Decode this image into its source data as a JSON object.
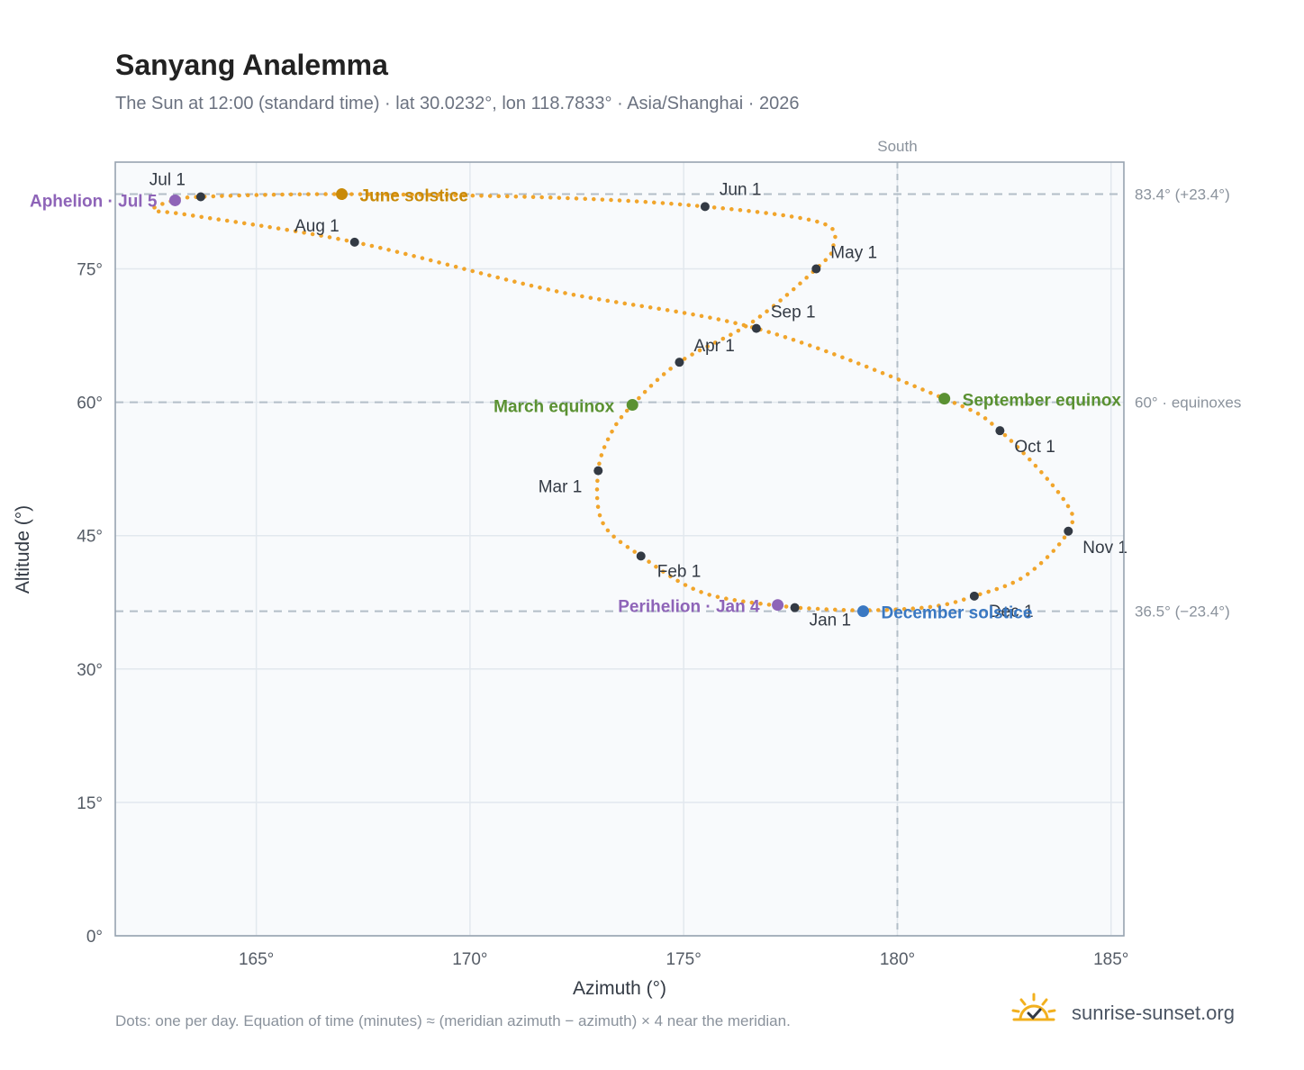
{
  "title": "Sanyang Analemma",
  "subtitle": "The Sun at 12:00 (standard time) · lat 30.0232°, lon 118.7833° · Asia/Shanghai · 2026",
  "footnote": "Dots: one per day. Equation of time (minutes) ≈ (meridian azimuth − azimuth) × 4 near the meridian.",
  "brand": {
    "text": "sunrise-sunset.org",
    "icon": "sun-check-icon"
  },
  "colors": {
    "path": "#f0a020",
    "month": "#333a44",
    "purple": "#8e64b8",
    "green": "#5a9132",
    "gold": "#c98a08",
    "blue": "#3a78c2",
    "grid": "#e2e8ee",
    "ref": "#b3bec8",
    "plot_bg": "#f8fafc",
    "frame": "#97a3b0"
  },
  "chart_data": {
    "type": "scatter",
    "xlabel": "Azimuth (°)",
    "ylabel": "Altitude (°)",
    "xlim": [
      161.7,
      185.3
    ],
    "ylim": [
      0,
      87
    ],
    "xticks": [
      165,
      170,
      175,
      180,
      185
    ],
    "xtick_labels": [
      "165°",
      "170°",
      "175°",
      "180°",
      "185°"
    ],
    "yticks": [
      0,
      15,
      30,
      45,
      60,
      75
    ],
    "ytick_labels": [
      "0°",
      "15°",
      "30°",
      "45°",
      "60°",
      "75°"
    ],
    "grid": true,
    "meridian": {
      "label": "South",
      "x": 180
    },
    "reference_lines": [
      {
        "y": 83.4,
        "label": "83.4° (+23.4°)"
      },
      {
        "y": 60.0,
        "label": "60° · equinoxes"
      },
      {
        "y": 36.5,
        "label": "36.5° (−23.4°)"
      }
    ],
    "path_key_points": [
      {
        "x": 177.6,
        "y": 36.9
      },
      {
        "x": 175.5,
        "y": 38.5
      },
      {
        "x": 174.0,
        "y": 42.7
      },
      {
        "x": 173.1,
        "y": 46.5
      },
      {
        "x": 173.0,
        "y": 52.3
      },
      {
        "x": 173.3,
        "y": 56.5
      },
      {
        "x": 173.8,
        "y": 59.7
      },
      {
        "x": 174.9,
        "y": 64.5
      },
      {
        "x": 176.6,
        "y": 69.0
      },
      {
        "x": 178.1,
        "y": 75.0
      },
      {
        "x": 178.5,
        "y": 77.5
      },
      {
        "x": 178.2,
        "y": 80.2
      },
      {
        "x": 175.5,
        "y": 82.0
      },
      {
        "x": 172.0,
        "y": 83.0
      },
      {
        "x": 167.0,
        "y": 83.4
      },
      {
        "x": 163.7,
        "y": 83.1
      },
      {
        "x": 163.0,
        "y": 82.6
      },
      {
        "x": 162.6,
        "y": 81.6
      },
      {
        "x": 163.5,
        "y": 81.0
      },
      {
        "x": 167.3,
        "y": 78.0
      },
      {
        "x": 172.0,
        "y": 72.5
      },
      {
        "x": 176.7,
        "y": 68.3
      },
      {
        "x": 181.1,
        "y": 60.4
      },
      {
        "x": 182.4,
        "y": 56.8
      },
      {
        "x": 183.9,
        "y": 49.0
      },
      {
        "x": 184.0,
        "y": 45.5
      },
      {
        "x": 183.0,
        "y": 40.5
      },
      {
        "x": 181.8,
        "y": 38.2
      },
      {
        "x": 180.8,
        "y": 37.0
      },
      {
        "x": 179.2,
        "y": 36.6
      },
      {
        "x": 177.6,
        "y": 36.9
      }
    ],
    "months": [
      {
        "label": "Jan 1",
        "x": 177.6,
        "y": 36.9,
        "dx": 16,
        "dy": 20,
        "anchor": "start"
      },
      {
        "label": "Feb 1",
        "x": 174.0,
        "y": 42.7,
        "dx": 18,
        "dy": 23,
        "anchor": "start"
      },
      {
        "label": "Mar 1",
        "x": 173.0,
        "y": 52.3,
        "dx": -18,
        "dy": 24,
        "anchor": "end"
      },
      {
        "label": "Apr 1",
        "x": 174.9,
        "y": 64.5,
        "dx": 16,
        "dy": -12,
        "anchor": "start"
      },
      {
        "label": "May 1",
        "x": 178.1,
        "y": 75.0,
        "dx": 16,
        "dy": -12,
        "anchor": "start"
      },
      {
        "label": "Jun 1",
        "x": 175.5,
        "y": 82.0,
        "dx": 16,
        "dy": -13,
        "anchor": "start"
      },
      {
        "label": "Jul 1",
        "x": 163.7,
        "y": 83.1,
        "dx": -17,
        "dy": -13,
        "anchor": "end"
      },
      {
        "label": "Aug 1",
        "x": 167.3,
        "y": 78.0,
        "dx": -17,
        "dy": -12,
        "anchor": "end"
      },
      {
        "label": "Sep 1",
        "x": 176.7,
        "y": 68.3,
        "dx": 16,
        "dy": -12,
        "anchor": "start"
      },
      {
        "label": "Oct 1",
        "x": 182.4,
        "y": 56.8,
        "dx": 16,
        "dy": 24,
        "anchor": "start"
      },
      {
        "label": "Nov 1",
        "x": 184.0,
        "y": 45.5,
        "dx": 16,
        "dy": 24,
        "anchor": "start"
      },
      {
        "label": "Dec 1",
        "x": 181.8,
        "y": 38.2,
        "dx": 16,
        "dy": 23,
        "anchor": "start"
      }
    ],
    "events": [
      {
        "label": "Aphelion · Jul 5",
        "x": 163.1,
        "y": 82.7,
        "color": "#8e64b8",
        "dx": -20,
        "dy": 7,
        "anchor": "end"
      },
      {
        "label": "June solstice",
        "x": 167.0,
        "y": 83.4,
        "color": "#c98a08",
        "dx": 20,
        "dy": 8,
        "anchor": "start"
      },
      {
        "label": "March equinox",
        "x": 173.8,
        "y": 59.7,
        "color": "#5a9132",
        "dx": -20,
        "dy": 8,
        "anchor": "end"
      },
      {
        "label": "September equinox",
        "x": 181.1,
        "y": 60.4,
        "color": "#5a9132",
        "dx": 20,
        "dy": 8,
        "anchor": "start"
      },
      {
        "label": "Perihelion · Jan 4",
        "x": 177.2,
        "y": 37.2,
        "color": "#8e64b8",
        "dx": -20,
        "dy": 8,
        "anchor": "end"
      },
      {
        "label": "December solstice",
        "x": 179.2,
        "y": 36.5,
        "color": "#3a78c2",
        "dx": 20,
        "dy": 8,
        "anchor": "start"
      }
    ]
  }
}
